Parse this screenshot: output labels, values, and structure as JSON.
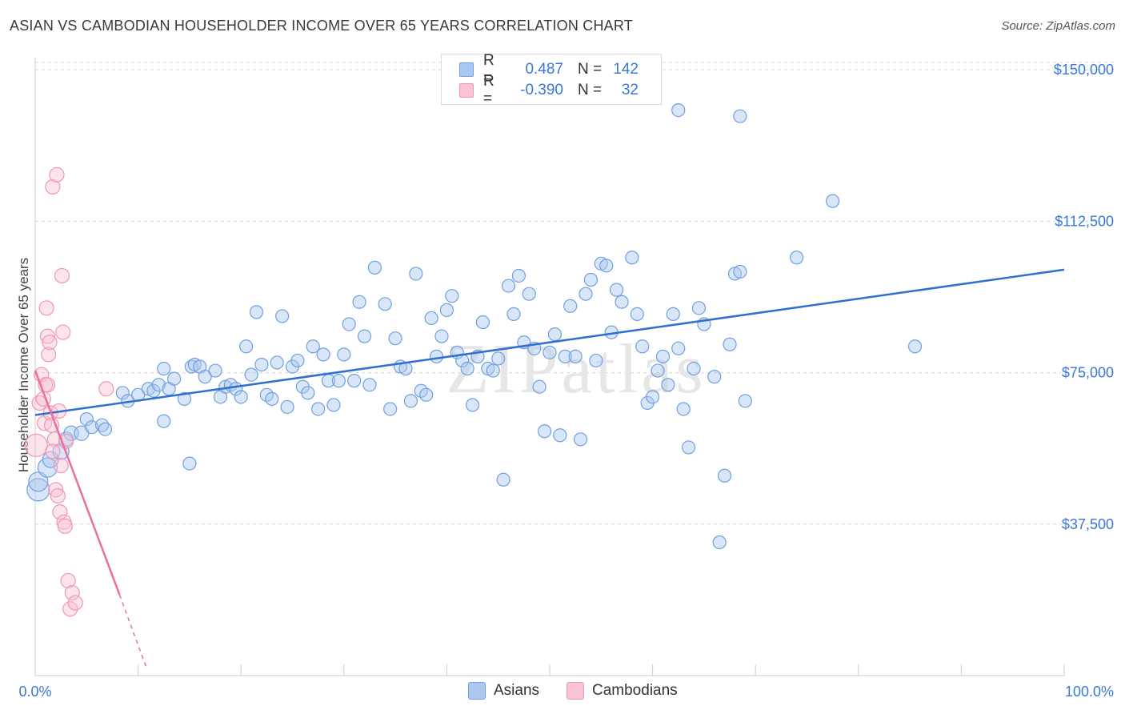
{
  "header": {
    "title": "ASIAN VS CAMBODIAN HOUSEHOLDER INCOME OVER 65 YEARS CORRELATION CHART",
    "source": "Source: ZipAtlas.com"
  },
  "colors": {
    "asian": "#6fa0e0",
    "asian_fill": "#aac8f0",
    "asian_line": "#2e6fcf",
    "cambodian": "#f097b5",
    "cambodian_fill": "#f8c3d4",
    "cambodian_line": "#e8709a",
    "tick_label": "#3b78d6",
    "grid": "#d8d8d8"
  },
  "legend": {
    "asian": {
      "r_label": "R =",
      "r_value": "0.487",
      "n_label": "N =",
      "n_value": "142"
    },
    "cambodian": {
      "r_label": "R =",
      "r_value": "-0.390",
      "n_label": "N =",
      "n_value": "32"
    }
  },
  "bottom_legend": {
    "asian": "Asians",
    "cambodian": "Cambodians"
  },
  "watermark": "ZIPatlas",
  "chart_data": {
    "type": "scatter",
    "title": "ASIAN VS CAMBODIAN HOUSEHOLDER INCOME OVER 65 YEARS CORRELATION CHART",
    "xlabel": "",
    "ylabel": "Householder Income Over 65 years",
    "xlim": [
      0,
      100
    ],
    "ylim": [
      0,
      153000
    ],
    "x_tick_labels": [
      "0.0%",
      "100.0%"
    ],
    "y_ticks": [
      37500,
      75000,
      112500,
      150000
    ],
    "y_tick_labels": [
      "$37,500",
      "$75,000",
      "$112,500",
      "$150,000"
    ],
    "grid": true,
    "legend_position": "top-center",
    "series": [
      {
        "name": "Asians",
        "r": 0.487,
        "n": 142,
        "trend": {
          "x": [
            0,
            100
          ],
          "y": [
            64500,
            100500
          ]
        },
        "points": [
          [
            0.3,
            46000,
            14
          ],
          [
            0.3,
            48000,
            12
          ],
          [
            1.2,
            51500,
            12
          ],
          [
            1.5,
            53500,
            10
          ],
          [
            2.5,
            55500,
            10
          ],
          [
            3.0,
            58500,
            9
          ],
          [
            3.5,
            60000,
            9
          ],
          [
            4.5,
            60000,
            9
          ],
          [
            5.0,
            63500,
            8
          ],
          [
            5.5,
            61500,
            8
          ],
          [
            6.5,
            62000,
            8
          ],
          [
            6.8,
            61000,
            8
          ],
          [
            8.5,
            70000,
            8
          ],
          [
            9.0,
            68000,
            8
          ],
          [
            10.0,
            69500,
            8
          ],
          [
            11.0,
            71000,
            8
          ],
          [
            11.5,
            70500,
            8
          ],
          [
            12.0,
            72000,
            8
          ],
          [
            12.5,
            63000,
            8
          ],
          [
            12.5,
            76000,
            8
          ],
          [
            13.0,
            71000,
            8
          ],
          [
            13.5,
            73500,
            8
          ],
          [
            14.5,
            68500,
            8
          ],
          [
            15.0,
            52500,
            8
          ],
          [
            15.2,
            76500,
            8
          ],
          [
            15.5,
            77000,
            8
          ],
          [
            16.0,
            76500,
            8
          ],
          [
            16.5,
            74000,
            8
          ],
          [
            17.5,
            75500,
            8
          ],
          [
            18.0,
            69000,
            8
          ],
          [
            18.5,
            71500,
            8
          ],
          [
            19.0,
            72000,
            8
          ],
          [
            19.5,
            71000,
            8
          ],
          [
            20.0,
            69000,
            8
          ],
          [
            20.5,
            81500,
            8
          ],
          [
            21.0,
            74500,
            8
          ],
          [
            21.5,
            90000,
            8
          ],
          [
            22.0,
            77000,
            8
          ],
          [
            22.5,
            69500,
            8
          ],
          [
            23.0,
            68500,
            8
          ],
          [
            23.5,
            77500,
            8
          ],
          [
            24.0,
            89000,
            8
          ],
          [
            24.5,
            66500,
            8
          ],
          [
            25.0,
            76500,
            8
          ],
          [
            25.5,
            78000,
            8
          ],
          [
            26.0,
            71500,
            8
          ],
          [
            26.5,
            70000,
            8
          ],
          [
            27.0,
            81500,
            8
          ],
          [
            27.5,
            66000,
            8
          ],
          [
            28.0,
            79500,
            8
          ],
          [
            28.5,
            73000,
            8
          ],
          [
            29.0,
            67000,
            8
          ],
          [
            29.5,
            73000,
            8
          ],
          [
            30.0,
            79500,
            8
          ],
          [
            30.5,
            87000,
            8
          ],
          [
            31.0,
            73000,
            8
          ],
          [
            31.5,
            92500,
            8
          ],
          [
            32.0,
            84000,
            8
          ],
          [
            32.5,
            72000,
            8
          ],
          [
            33.0,
            101000,
            8
          ],
          [
            34.0,
            92000,
            8
          ],
          [
            34.5,
            66000,
            8
          ],
          [
            35.0,
            83500,
            8
          ],
          [
            35.5,
            76500,
            8
          ],
          [
            36.0,
            76000,
            8
          ],
          [
            36.5,
            68000,
            8
          ],
          [
            37.0,
            99500,
            8
          ],
          [
            37.5,
            70500,
            8
          ],
          [
            38.0,
            69500,
            8
          ],
          [
            38.5,
            88500,
            8
          ],
          [
            39.0,
            79000,
            8
          ],
          [
            39.5,
            84000,
            8
          ],
          [
            40.0,
            90500,
            8
          ],
          [
            40.5,
            94000,
            8
          ],
          [
            41.0,
            80000,
            8
          ],
          [
            41.5,
            78000,
            8
          ],
          [
            42.0,
            76000,
            8
          ],
          [
            42.5,
            67000,
            8
          ],
          [
            43.0,
            79000,
            8
          ],
          [
            43.5,
            87500,
            8
          ],
          [
            44.0,
            76000,
            8
          ],
          [
            44.5,
            75500,
            8
          ],
          [
            45.0,
            78500,
            8
          ],
          [
            45.5,
            48500,
            8
          ],
          [
            46.0,
            96500,
            8
          ],
          [
            46.5,
            89500,
            8
          ],
          [
            47.0,
            99000,
            8
          ],
          [
            47.5,
            82500,
            8
          ],
          [
            48.0,
            94500,
            8
          ],
          [
            48.5,
            81000,
            8
          ],
          [
            49.0,
            71500,
            8
          ],
          [
            49.5,
            60500,
            8
          ],
          [
            50.0,
            80000,
            8
          ],
          [
            50.5,
            84500,
            8
          ],
          [
            51.0,
            59500,
            8
          ],
          [
            51.5,
            79000,
            8
          ],
          [
            52.0,
            91500,
            8
          ],
          [
            52.5,
            79000,
            8
          ],
          [
            53.0,
            58500,
            8
          ],
          [
            53.5,
            94500,
            8
          ],
          [
            54.0,
            98000,
            8
          ],
          [
            54.5,
            78000,
            8
          ],
          [
            55.0,
            102000,
            8
          ],
          [
            55.5,
            101500,
            8
          ],
          [
            56.0,
            85000,
            8
          ],
          [
            56.5,
            95500,
            8
          ],
          [
            57.0,
            92500,
            8
          ],
          [
            58.0,
            103500,
            8
          ],
          [
            58.5,
            89500,
            8
          ],
          [
            59.0,
            81500,
            8
          ],
          [
            59.5,
            67500,
            8
          ],
          [
            60.0,
            69000,
            8
          ],
          [
            60.5,
            75500,
            8
          ],
          [
            61.0,
            79000,
            8
          ],
          [
            61.5,
            72000,
            8
          ],
          [
            62.0,
            89500,
            8
          ],
          [
            62.5,
            81000,
            8
          ],
          [
            63.0,
            66000,
            8
          ],
          [
            63.5,
            56500,
            8
          ],
          [
            64.0,
            76000,
            8
          ],
          [
            64.5,
            91000,
            8
          ],
          [
            65.0,
            87000,
            8
          ],
          [
            66.0,
            74000,
            8
          ],
          [
            67.0,
            49500,
            8
          ],
          [
            67.5,
            82000,
            8
          ],
          [
            68.0,
            99500,
            8
          ],
          [
            68.5,
            100000,
            8
          ],
          [
            69.0,
            68000,
            8
          ],
          [
            62.5,
            140000,
            8
          ],
          [
            68.5,
            138500,
            8
          ],
          [
            77.5,
            117500,
            8
          ],
          [
            74.0,
            103500,
            8
          ],
          [
            85.5,
            81500,
            8
          ],
          [
            66.5,
            33000,
            8
          ]
        ]
      },
      {
        "name": "Cambodians",
        "r": -0.39,
        "n": 32,
        "trend": {
          "x": [
            0,
            8.2
          ],
          "y": [
            75500,
            20000
          ]
        },
        "trend_dashed": {
          "x": [
            8.2,
            10.8
          ],
          "y": [
            20000,
            2000
          ]
        },
        "points": [
          [
            0.1,
            57000,
            14
          ],
          [
            0.4,
            67500,
            9
          ],
          [
            0.6,
            74500,
            9
          ],
          [
            0.8,
            68500,
            9
          ],
          [
            0.9,
            62500,
            9
          ],
          [
            1.0,
            72000,
            9
          ],
          [
            1.1,
            91000,
            9
          ],
          [
            1.2,
            84000,
            9
          ],
          [
            1.3,
            79500,
            9
          ],
          [
            1.4,
            82500,
            9
          ],
          [
            1.5,
            65000,
            9
          ],
          [
            1.6,
            62000,
            9
          ],
          [
            1.7,
            121000,
            9
          ],
          [
            1.9,
            58500,
            9
          ],
          [
            2.0,
            46000,
            9
          ],
          [
            2.1,
            124000,
            9
          ],
          [
            2.2,
            44500,
            9
          ],
          [
            2.3,
            65500,
            9
          ],
          [
            2.4,
            40500,
            9
          ],
          [
            2.5,
            52000,
            9
          ],
          [
            2.6,
            99000,
            9
          ],
          [
            2.7,
            85000,
            9
          ],
          [
            2.8,
            38000,
            9
          ],
          [
            2.9,
            37000,
            9
          ],
          [
            3.0,
            58000,
            9
          ],
          [
            3.2,
            23500,
            9
          ],
          [
            3.4,
            16500,
            9
          ],
          [
            3.6,
            20500,
            9
          ],
          [
            3.9,
            18000,
            9
          ],
          [
            6.9,
            71000,
            9
          ],
          [
            1.2,
            72000,
            9
          ],
          [
            1.7,
            55500,
            9
          ]
        ]
      }
    ]
  }
}
